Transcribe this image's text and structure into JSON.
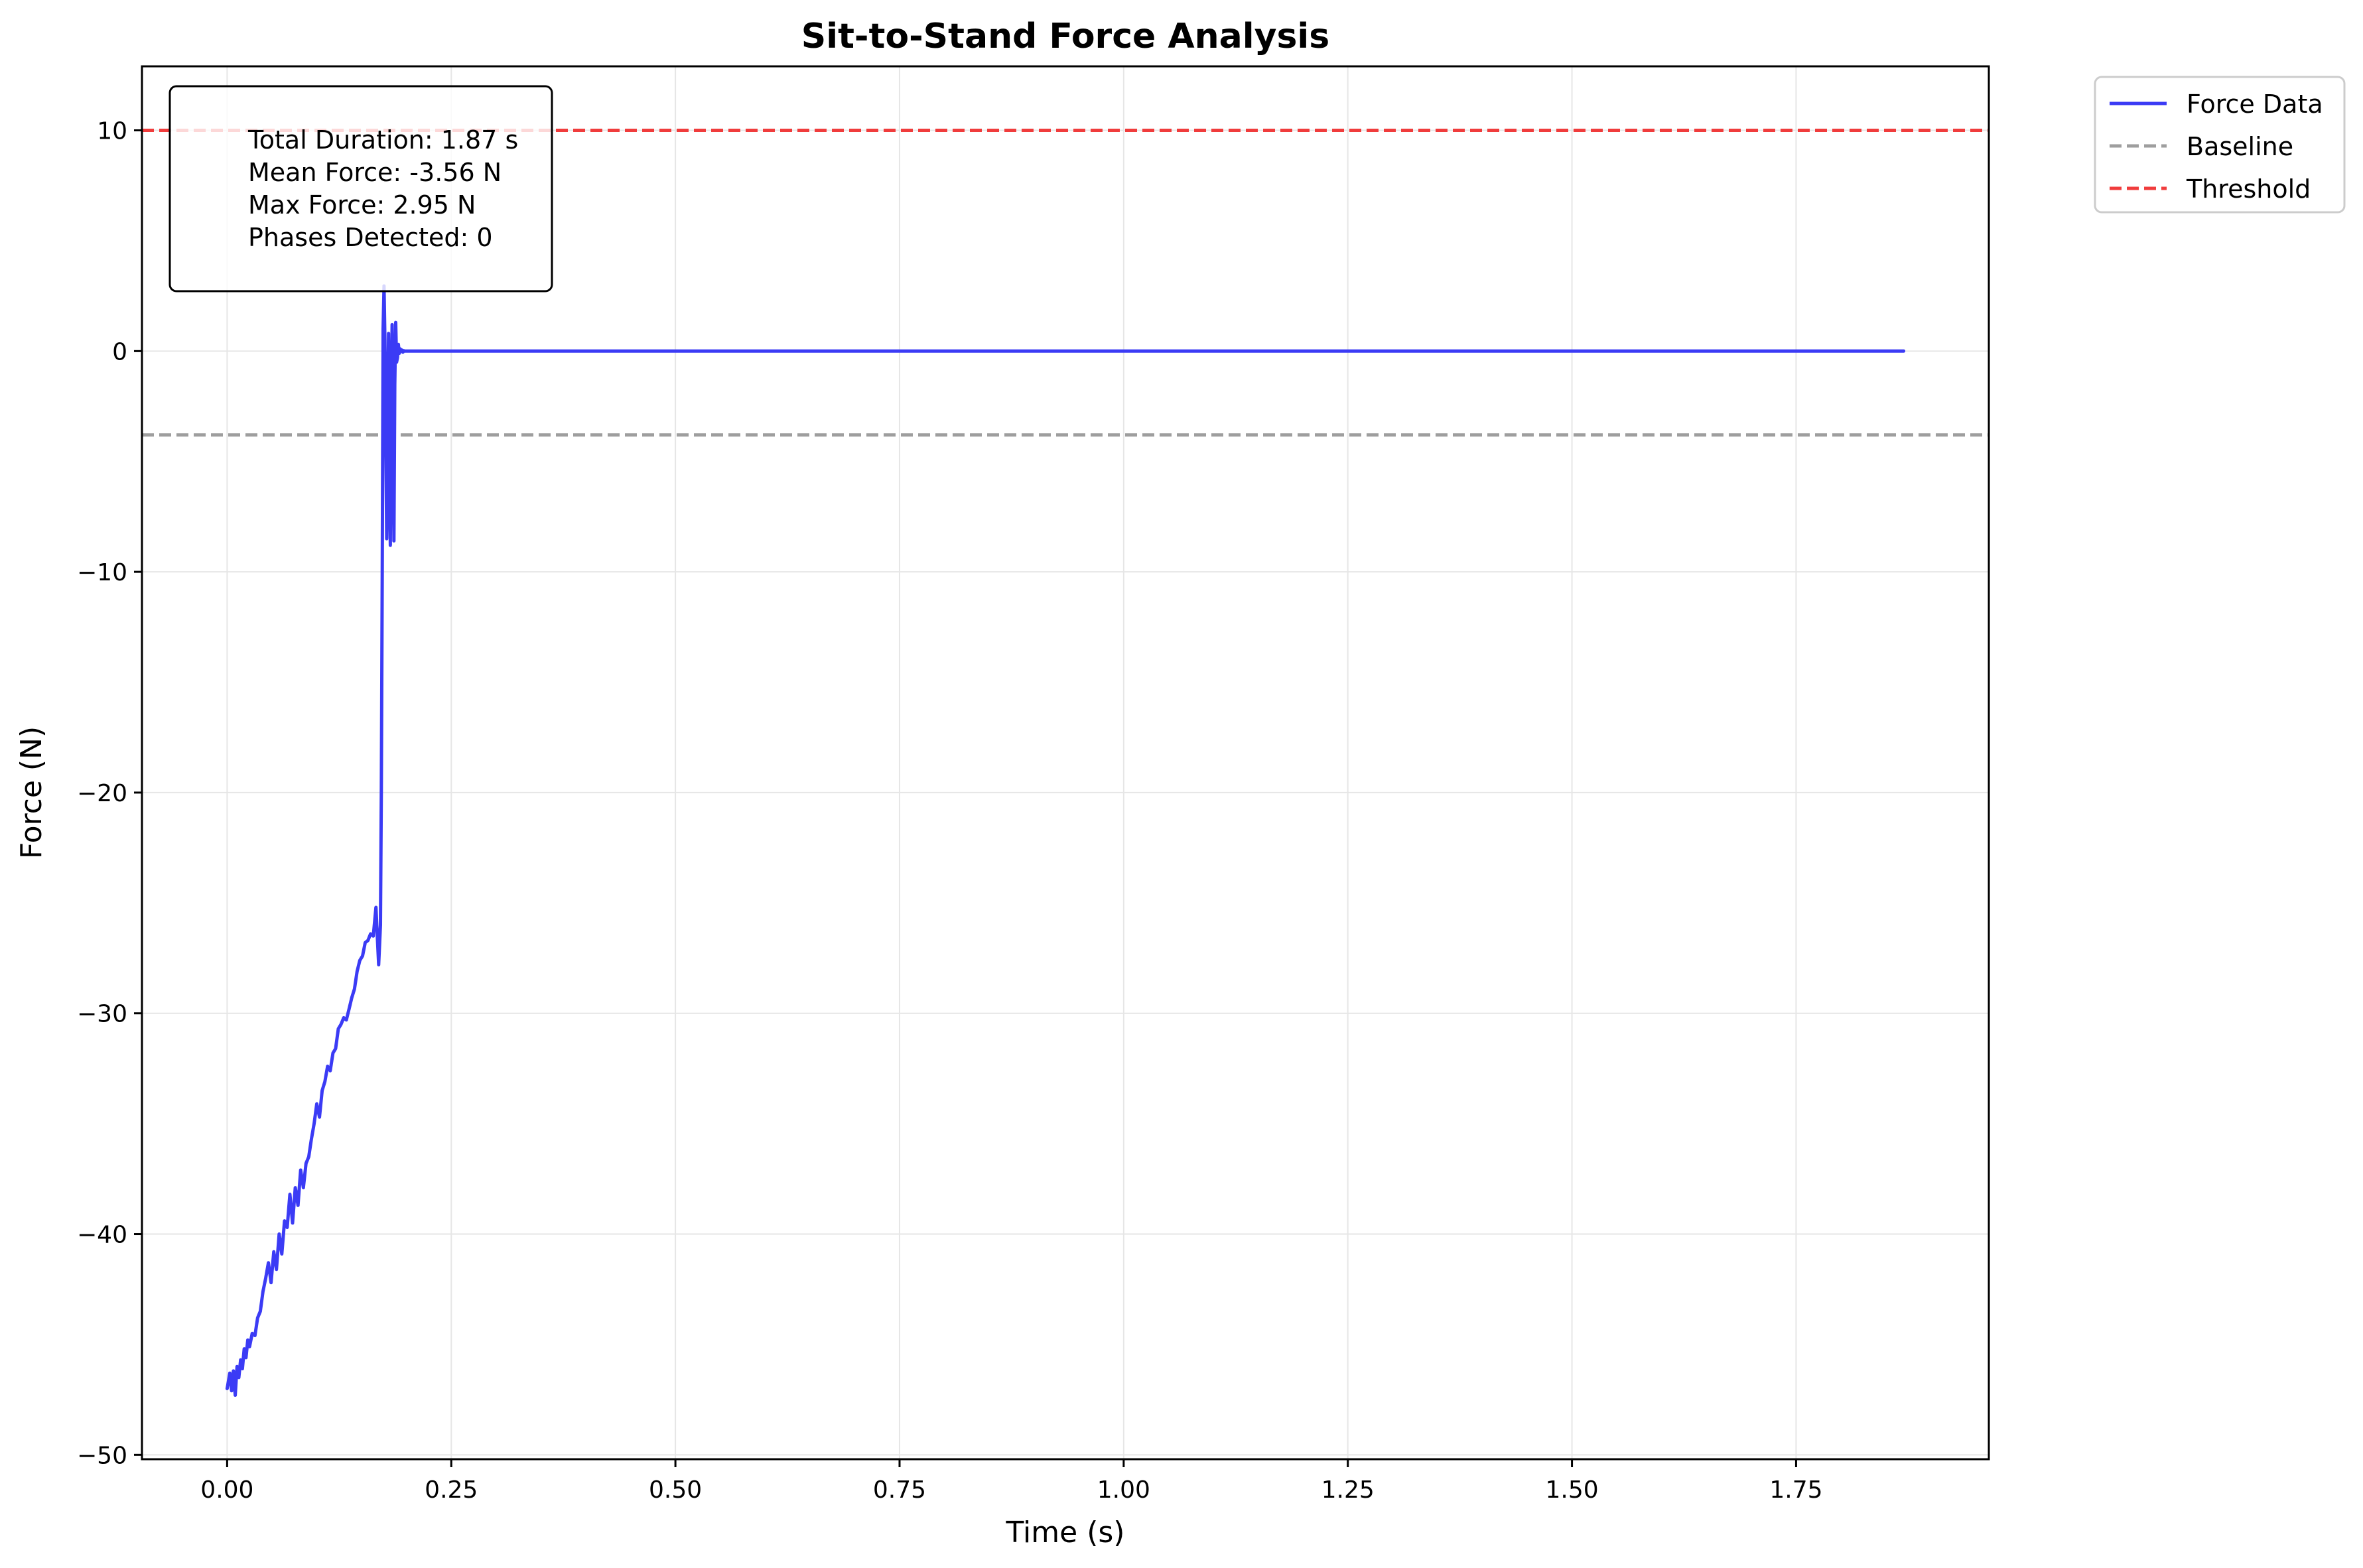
{
  "chart_data": {
    "type": "line",
    "title": "Sit-to-Stand Force Analysis",
    "xlabel": "Time (s)",
    "ylabel": "Force (N)",
    "xlim": [
      -0.095,
      1.965
    ],
    "ylim": [
      -50.2,
      12.9
    ],
    "xticks": [
      0.0,
      0.25,
      0.5,
      0.75,
      1.0,
      1.25,
      1.5,
      1.75
    ],
    "xtick_labels": [
      "0.00",
      "0.25",
      "0.50",
      "0.75",
      "1.00",
      "1.25",
      "1.50",
      "1.75"
    ],
    "yticks": [
      -50,
      -40,
      -30,
      -20,
      -10,
      0,
      10
    ],
    "ytick_labels": [
      "−50",
      "−40",
      "−30",
      "−20",
      "−10",
      "0",
      "10"
    ],
    "grid": true,
    "legend_position": "outside-top-right",
    "stats_box": [
      "Total Duration: 1.87 s",
      "Mean Force: -3.56 N",
      "Max Force: 2.95 N",
      "Phases Detected: 0"
    ],
    "series": [
      {
        "name": "Force Data",
        "color": "#3b3bf5",
        "style": "solid",
        "x": [
          0.0,
          0.003,
          0.005,
          0.007,
          0.009,
          0.011,
          0.013,
          0.015,
          0.017,
          0.019,
          0.021,
          0.023,
          0.025,
          0.028,
          0.031,
          0.034,
          0.037,
          0.04,
          0.043,
          0.046,
          0.049,
          0.052,
          0.055,
          0.058,
          0.061,
          0.064,
          0.067,
          0.07,
          0.073,
          0.076,
          0.079,
          0.082,
          0.085,
          0.088,
          0.091,
          0.094,
          0.097,
          0.1,
          0.103,
          0.106,
          0.109,
          0.112,
          0.115,
          0.118,
          0.121,
          0.124,
          0.127,
          0.13,
          0.133,
          0.136,
          0.139,
          0.142,
          0.145,
          0.148,
          0.151,
          0.154,
          0.157,
          0.16,
          0.163,
          0.166,
          0.169,
          0.171,
          0.172,
          0.173,
          0.174,
          0.175,
          0.176,
          0.177,
          0.178,
          0.179,
          0.18,
          0.181,
          0.182,
          0.183,
          0.184,
          0.185,
          0.186,
          0.187,
          0.188,
          0.189,
          0.19,
          0.191,
          0.192,
          0.193,
          0.194,
          0.195,
          0.196,
          0.197,
          0.198,
          0.2,
          0.21,
          0.25,
          0.5,
          1.0,
          1.5,
          1.87
        ],
        "y": [
          -47.0,
          -46.3,
          -47.1,
          -46.2,
          -47.3,
          -46.0,
          -46.5,
          -45.7,
          -46.1,
          -45.2,
          -45.6,
          -44.8,
          -45.1,
          -44.5,
          -44.6,
          -43.8,
          -43.5,
          -42.6,
          -42.0,
          -41.3,
          -42.2,
          -40.8,
          -41.6,
          -40.0,
          -40.9,
          -39.4,
          -39.7,
          -38.2,
          -39.5,
          -37.9,
          -38.7,
          -37.1,
          -37.9,
          -36.8,
          -36.5,
          -35.7,
          -35.0,
          -34.1,
          -34.7,
          -33.5,
          -33.1,
          -32.4,
          -32.6,
          -31.8,
          -31.6,
          -30.7,
          -30.5,
          -30.2,
          -30.3,
          -29.8,
          -29.3,
          -28.9,
          -28.1,
          -27.6,
          -27.4,
          -26.8,
          -26.7,
          -26.4,
          -26.5,
          -25.2,
          -27.8,
          -26.0,
          -20.0,
          -10.0,
          1.0,
          2.95,
          0.5,
          -4.0,
          -8.5,
          -3.0,
          0.8,
          -6.0,
          -8.8,
          -2.0,
          1.2,
          -3.5,
          -8.6,
          -1.5,
          1.3,
          -0.5,
          -0.3,
          0.3,
          -0.1,
          0.1,
          0.0,
          0.05,
          -0.05,
          0.02,
          0.0,
          0.0,
          0.0,
          0.0,
          0.0,
          0.0,
          0.0,
          0.0
        ]
      },
      {
        "name": "Baseline",
        "color": "#9e9e9e",
        "style": "dashed",
        "y": -3.8
      },
      {
        "name": "Threshold",
        "color": "#f03c3c",
        "style": "dashed",
        "y": 10.0
      }
    ]
  }
}
